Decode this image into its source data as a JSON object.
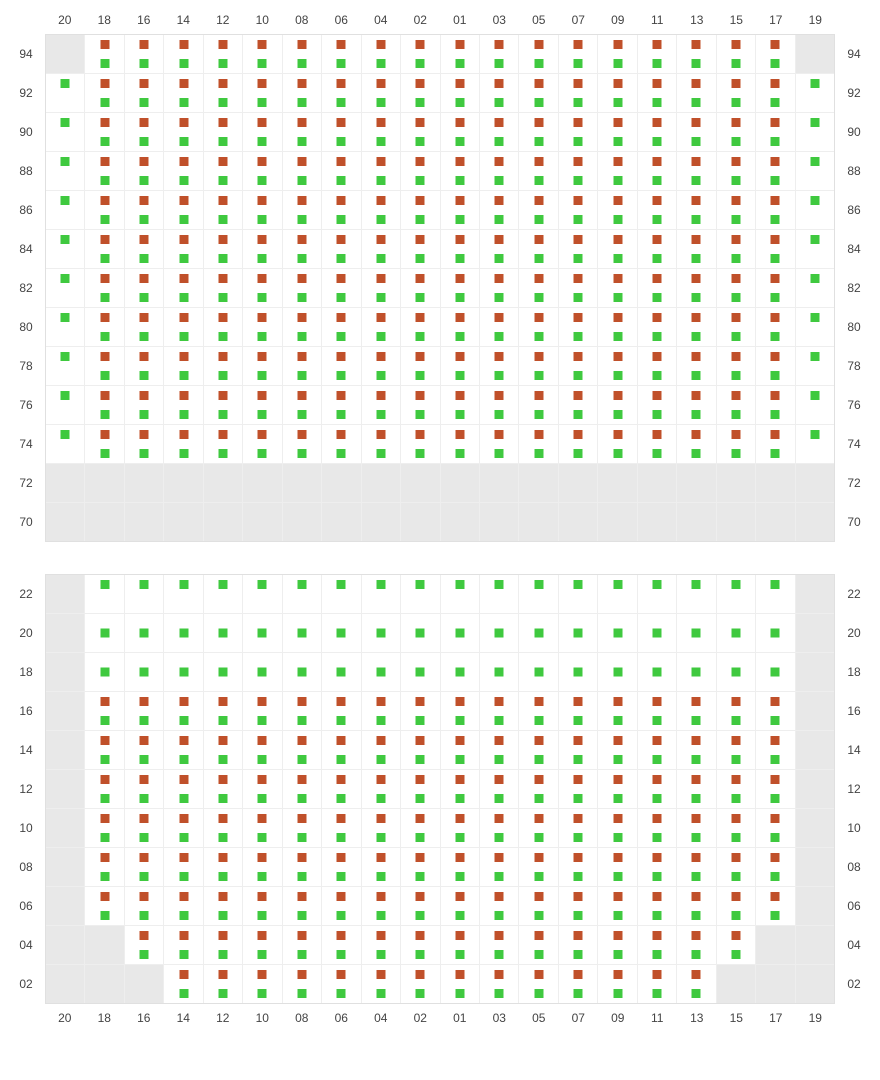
{
  "colors": {
    "red": "#c0502a",
    "green": "#3fc93f",
    "blank": "#e8e8e8",
    "grid": "#eeeeee"
  },
  "columns": [
    "20",
    "18",
    "16",
    "14",
    "12",
    "10",
    "08",
    "06",
    "04",
    "02",
    "01",
    "03",
    "05",
    "07",
    "09",
    "11",
    "13",
    "15",
    "17",
    "19"
  ],
  "sections": [
    {
      "id": "top",
      "rows": [
        {
          "label": "94",
          "cells": [
            "B",
            "RG",
            "RG",
            "RG",
            "RG",
            "RG",
            "RG",
            "RG",
            "RG",
            "RG",
            "RG",
            "RG",
            "RG",
            "RG",
            "RG",
            "RG",
            "RG",
            "RG",
            "RG",
            "B"
          ]
        },
        {
          "label": "92",
          "cells": [
            "GT",
            "RG",
            "RG",
            "RG",
            "RG",
            "RG",
            "RG",
            "RG",
            "RG",
            "RG",
            "RG",
            "RG",
            "RG",
            "RG",
            "RG",
            "RG",
            "RG",
            "RG",
            "RG",
            "GT"
          ]
        },
        {
          "label": "90",
          "cells": [
            "GT",
            "RG",
            "RG",
            "RG",
            "RG",
            "RG",
            "RG",
            "RG",
            "RG",
            "RG",
            "RG",
            "RG",
            "RG",
            "RG",
            "RG",
            "RG",
            "RG",
            "RG",
            "RG",
            "GT"
          ]
        },
        {
          "label": "88",
          "cells": [
            "GT",
            "RG",
            "RG",
            "RG",
            "RG",
            "RG",
            "RG",
            "RG",
            "RG",
            "RG",
            "RG",
            "RG",
            "RG",
            "RG",
            "RG",
            "RG",
            "RG",
            "RG",
            "RG",
            "GT"
          ]
        },
        {
          "label": "86",
          "cells": [
            "GT",
            "RG",
            "RG",
            "RG",
            "RG",
            "RG",
            "RG",
            "RG",
            "RG",
            "RG",
            "RG",
            "RG",
            "RG",
            "RG",
            "RG",
            "RG",
            "RG",
            "RG",
            "RG",
            "GT"
          ]
        },
        {
          "label": "84",
          "cells": [
            "GT",
            "RG",
            "RG",
            "RG",
            "RG",
            "RG",
            "RG",
            "RG",
            "RG",
            "RG",
            "RG",
            "RG",
            "RG",
            "RG",
            "RG",
            "RG",
            "RG",
            "RG",
            "RG",
            "GT"
          ]
        },
        {
          "label": "82",
          "cells": [
            "GT",
            "RG",
            "RG",
            "RG",
            "RG",
            "RG",
            "RG",
            "RG",
            "RG",
            "RG",
            "RG",
            "RG",
            "RG",
            "RG",
            "RG",
            "RG",
            "RG",
            "RG",
            "RG",
            "GT"
          ]
        },
        {
          "label": "80",
          "cells": [
            "GT",
            "RG",
            "RG",
            "RG",
            "RG",
            "RG",
            "RG",
            "RG",
            "RG",
            "RG",
            "RG",
            "RG",
            "RG",
            "RG",
            "RG",
            "RG",
            "RG",
            "RG",
            "RG",
            "GT"
          ]
        },
        {
          "label": "78",
          "cells": [
            "GT",
            "RG",
            "RG",
            "RG",
            "RG",
            "RG",
            "RG",
            "RG",
            "RG",
            "RG",
            "RG",
            "RG",
            "RG",
            "RG",
            "RG",
            "RG",
            "RG",
            "RG",
            "RG",
            "GT"
          ]
        },
        {
          "label": "76",
          "cells": [
            "GT",
            "RG",
            "RG",
            "RG",
            "RG",
            "RG",
            "RG",
            "RG",
            "RG",
            "RG",
            "RG",
            "RG",
            "RG",
            "RG",
            "RG",
            "RG",
            "RG",
            "RG",
            "RG",
            "GT"
          ]
        },
        {
          "label": "74",
          "cells": [
            "GT",
            "RG",
            "RG",
            "RG",
            "RG",
            "RG",
            "RG",
            "RG",
            "RG",
            "RG",
            "RG",
            "RG",
            "RG",
            "RG",
            "RG",
            "RG",
            "RG",
            "RG",
            "RG",
            "GT"
          ]
        },
        {
          "label": "72",
          "cells": [
            "B",
            "B",
            "B",
            "B",
            "B",
            "B",
            "B",
            "B",
            "B",
            "B",
            "B",
            "B",
            "B",
            "B",
            "B",
            "B",
            "B",
            "B",
            "B",
            "B"
          ]
        },
        {
          "label": "70",
          "cells": [
            "B",
            "B",
            "B",
            "B",
            "B",
            "B",
            "B",
            "B",
            "B",
            "B",
            "B",
            "B",
            "B",
            "B",
            "B",
            "B",
            "B",
            "B",
            "B",
            "B"
          ]
        }
      ]
    },
    {
      "id": "bottom",
      "rows": [
        {
          "label": "22",
          "cells": [
            "B",
            "GT",
            "GT",
            "GT",
            "GT",
            "GT",
            "GT",
            "GT",
            "GT",
            "GT",
            "GT",
            "GT",
            "GT",
            "GT",
            "GT",
            "GT",
            "GT",
            "GT",
            "GT",
            "B"
          ]
        },
        {
          "label": "20",
          "cells": [
            "B",
            "GM",
            "GM",
            "GM",
            "GM",
            "GM",
            "GM",
            "GM",
            "GM",
            "GM",
            "GM",
            "GM",
            "GM",
            "GM",
            "GM",
            "GM",
            "GM",
            "GM",
            "GM",
            "B"
          ]
        },
        {
          "label": "18",
          "cells": [
            "B",
            "GM",
            "GM",
            "GM",
            "GM",
            "GM",
            "GM",
            "GM",
            "GM",
            "GM",
            "GM",
            "GM",
            "GM",
            "GM",
            "GM",
            "GM",
            "GM",
            "GM",
            "GM",
            "B"
          ]
        },
        {
          "label": "16",
          "cells": [
            "B",
            "RG",
            "RG",
            "RG",
            "RG",
            "RG",
            "RG",
            "RG",
            "RG",
            "RG",
            "RG",
            "RG",
            "RG",
            "RG",
            "RG",
            "RG",
            "RG",
            "RG",
            "RG",
            "B"
          ]
        },
        {
          "label": "14",
          "cells": [
            "B",
            "RG",
            "RG",
            "RG",
            "RG",
            "RG",
            "RG",
            "RG",
            "RG",
            "RG",
            "RG",
            "RG",
            "RG",
            "RG",
            "RG",
            "RG",
            "RG",
            "RG",
            "RG",
            "B"
          ]
        },
        {
          "label": "12",
          "cells": [
            "B",
            "RG",
            "RG",
            "RG",
            "RG",
            "RG",
            "RG",
            "RG",
            "RG",
            "RG",
            "RG",
            "RG",
            "RG",
            "RG",
            "RG",
            "RG",
            "RG",
            "RG",
            "RG",
            "B"
          ]
        },
        {
          "label": "10",
          "cells": [
            "B",
            "RG",
            "RG",
            "RG",
            "RG",
            "RG",
            "RG",
            "RG",
            "RG",
            "RG",
            "RG",
            "RG",
            "RG",
            "RG",
            "RG",
            "RG",
            "RG",
            "RG",
            "RG",
            "B"
          ]
        },
        {
          "label": "08",
          "cells": [
            "B",
            "RG",
            "RG",
            "RG",
            "RG",
            "RG",
            "RG",
            "RG",
            "RG",
            "RG",
            "RG",
            "RG",
            "RG",
            "RG",
            "RG",
            "RG",
            "RG",
            "RG",
            "RG",
            "B"
          ]
        },
        {
          "label": "06",
          "cells": [
            "B",
            "RG",
            "RG",
            "RG",
            "RG",
            "RG",
            "RG",
            "RG",
            "RG",
            "RG",
            "RG",
            "RG",
            "RG",
            "RG",
            "RG",
            "RG",
            "RG",
            "RG",
            "RG",
            "B"
          ]
        },
        {
          "label": "04",
          "cells": [
            "B",
            "B",
            "RG",
            "RG",
            "RG",
            "RG",
            "RG",
            "RG",
            "RG",
            "RG",
            "RG",
            "RG",
            "RG",
            "RG",
            "RG",
            "RG",
            "RG",
            "RG",
            "B",
            "B"
          ]
        },
        {
          "label": "02",
          "cells": [
            "B",
            "B",
            "B",
            "RG",
            "RG",
            "RG",
            "RG",
            "RG",
            "RG",
            "RG",
            "RG",
            "RG",
            "RG",
            "RG",
            "RG",
            "RG",
            "RG",
            "B",
            "B",
            "B"
          ]
        }
      ]
    }
  ],
  "legend": {
    "RG": "red-top-green-bottom",
    "GT": "green-top-only",
    "GM": "green-middle-only",
    "B": "blank-grey",
    "E": "empty-white"
  }
}
